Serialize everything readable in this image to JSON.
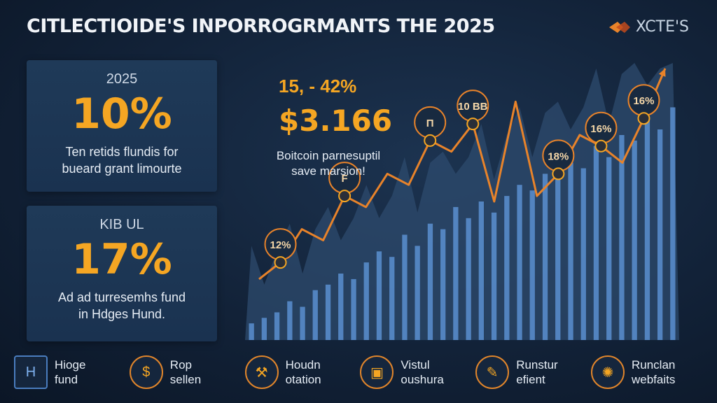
{
  "header": {
    "title": "CITLECTIOIDE'S INPORROGRMANTS THE 2025",
    "brand": "XCTE'S"
  },
  "cards": [
    {
      "kicker": "2025",
      "value": "10%",
      "desc_line1": "Ten retids flundis for",
      "desc_line2": "bueard grant limourte"
    },
    {
      "kicker": "KIB UL",
      "value": "17%",
      "desc_line1": "Ad ad turresemhs fund",
      "desc_line2": "in Hdges Hund."
    }
  ],
  "stat": {
    "top": "15, - 42%",
    "money": "$3.166",
    "desc_line1": "Boitcoin parnesuptil",
    "desc_line2": "save marsion!"
  },
  "chart_data": {
    "type": "line",
    "title": "",
    "xlabel": "",
    "ylabel": "",
    "x": [
      1,
      2,
      3,
      4,
      5,
      6,
      7,
      8,
      9,
      10,
      11,
      12,
      13,
      14,
      15,
      16,
      17,
      18,
      19,
      20
    ],
    "series": [
      {
        "values": [
          22,
          28,
          40,
          36,
          52,
          48,
          60,
          56,
          72,
          68,
          78,
          50,
          86,
          52,
          60,
          74,
          70,
          64,
          80,
          98
        ]
      }
    ],
    "bars": [
      6,
      8,
      10,
      14,
      12,
      18,
      20,
      24,
      22,
      28,
      32,
      30,
      38,
      34,
      42,
      40,
      48,
      44,
      50,
      46,
      52,
      56,
      54,
      60,
      58,
      64,
      62,
      70,
      66,
      74,
      72,
      80,
      76,
      84
    ],
    "markers": [
      {
        "index": 1,
        "label": "12%"
      },
      {
        "index": 4,
        "label": "F"
      },
      {
        "index": 8,
        "label": "Π"
      },
      {
        "index": 10,
        "label": "10 BB"
      },
      {
        "index": 14,
        "label": "18%"
      },
      {
        "index": 16,
        "label": "16%"
      },
      {
        "index": 18,
        "label": "16%"
      }
    ],
    "ylim": [
      0,
      100
    ],
    "colors": {
      "line": "#e8832a",
      "bars": "#5b8fd0",
      "area": "#2d4b6e"
    }
  },
  "features": [
    {
      "icon": "hedge-logo-icon",
      "glyph": "H",
      "line1": "Hioge",
      "line2": "fund"
    },
    {
      "icon": "coin-icon",
      "glyph": "$",
      "line1": "Rop",
      "line2": "sellen"
    },
    {
      "icon": "tool-icon",
      "glyph": "⚒",
      "line1": "Houdn",
      "line2": "otation"
    },
    {
      "icon": "box-icon",
      "glyph": "▣",
      "line1": "Vistul",
      "line2": "oushura"
    },
    {
      "icon": "pen-icon",
      "glyph": "✎",
      "line1": "Runstur",
      "line2": "efient"
    },
    {
      "icon": "gear-icon",
      "glyph": "✺",
      "line1": "Runclan",
      "line2": "webfaits"
    }
  ]
}
